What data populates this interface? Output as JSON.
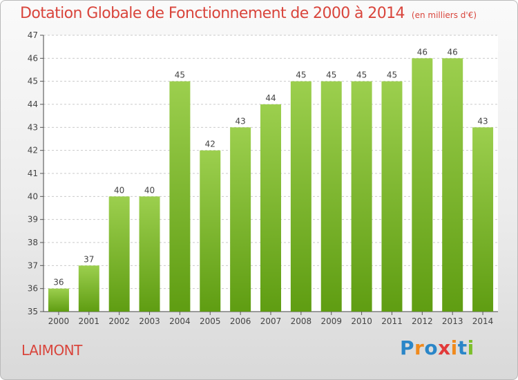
{
  "chart_data": {
    "type": "bar",
    "title": "Dotation Globale de Fonctionnement de 2000 à 2014",
    "unit_note": "(en milliers d'€)",
    "categories": [
      "2000",
      "2001",
      "2002",
      "2003",
      "2004",
      "2005",
      "2006",
      "2007",
      "2008",
      "2009",
      "2010",
      "2011",
      "2012",
      "2013",
      "2014"
    ],
    "values": [
      36,
      37,
      40,
      40,
      45,
      42,
      43,
      44,
      45,
      45,
      45,
      45,
      46,
      46,
      43
    ],
    "ylim": [
      35,
      47
    ],
    "yticks": [
      35,
      36,
      37,
      38,
      39,
      40,
      41,
      42,
      43,
      44,
      45,
      46,
      47
    ],
    "grid": true,
    "colors": {
      "bar_top": "#9ccf4e",
      "bar_bottom": "#5f9d12",
      "title": "#d9453c"
    }
  },
  "place_name": "LAIMONT",
  "logo": {
    "letters": [
      "P",
      "r",
      "o",
      "x",
      "i",
      "t",
      "i"
    ],
    "colors": [
      "#2a86c8",
      "#f08a1c",
      "#2a86c8",
      "#e23a3a",
      "#f08a1c",
      "#2a86c8",
      "#7cbf2a"
    ]
  }
}
